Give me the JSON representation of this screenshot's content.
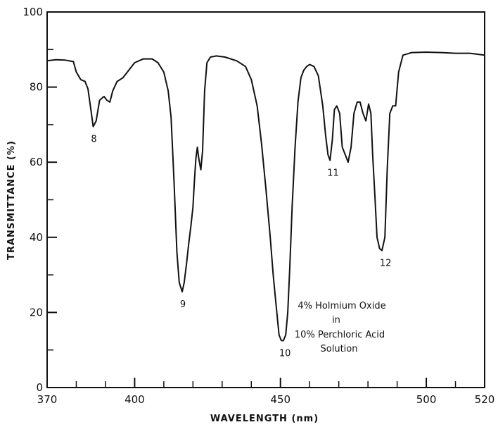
{
  "chart_data": {
    "type": "line",
    "xlabel": "WAVELENGTH (nm)",
    "ylabel": "TRANSMITTANCE (%)",
    "xlim": [
      370,
      520
    ],
    "ylim": [
      0,
      100
    ],
    "x_ticks": [
      370,
      400,
      450,
      500,
      520
    ],
    "y_ticks": [
      0,
      20,
      40,
      60,
      80,
      100
    ],
    "x_minor_ticks": [
      380,
      390,
      410,
      420,
      430,
      440,
      460,
      470,
      480,
      490,
      510
    ],
    "grid": false,
    "annotation_lines": [
      "4% Holmium Oxide",
      "in",
      "10% Perchloric Acid",
      "Solution"
    ],
    "peak_labels": [
      {
        "label": "8",
        "x": 385.8,
        "y": 69.5
      },
      {
        "label": "9",
        "x": 416.3,
        "y": 25.5
      },
      {
        "label": "10",
        "x": 451.3,
        "y": 12.5
      },
      {
        "label": "11",
        "x": 467.8,
        "y": 60.5
      },
      {
        "label": "12",
        "x": 485.8,
        "y": 36.5
      }
    ],
    "series": [
      {
        "x": [
          370,
          373,
          376,
          379,
          380,
          381.5,
          383,
          384,
          385,
          385.8,
          386.8,
          388,
          389.5,
          390.5,
          391.5,
          392.5,
          394,
          396,
          398,
          400,
          403,
          406,
          408,
          410,
          411.5,
          412.5,
          413.5,
          414.5,
          415.3,
          416.3,
          417,
          417.8,
          418.5,
          419.3,
          420,
          420.5,
          421,
          421.5,
          422,
          422.7,
          423.3,
          424,
          424.8,
          426,
          428,
          431,
          435,
          438,
          440,
          442,
          443.5,
          445,
          446.5,
          447.5,
          448.5,
          449.5,
          450.3,
          451,
          451.8,
          452.5,
          453.2,
          454,
          455,
          456,
          457,
          458,
          459,
          460,
          461.5,
          463,
          464.5,
          465.5,
          466.3,
          467,
          467.8,
          468.5,
          469.3,
          470.3,
          471.2,
          472.2,
          473.2,
          474.2,
          475.2,
          476.3,
          477.3,
          478.3,
          479.3,
          480.2,
          481,
          481.6,
          482.3,
          483.1,
          484,
          484.8,
          485.8,
          486.6,
          487.5,
          488.5,
          489.5,
          490.5,
          492,
          495,
          500,
          505,
          510,
          515,
          520
        ],
        "y": [
          87,
          87.3,
          87.2,
          86.8,
          84,
          82,
          81.5,
          79.5,
          74,
          69.5,
          71,
          76.5,
          77.5,
          76.5,
          76,
          79,
          81.5,
          82.5,
          84.5,
          86.5,
          87.5,
          87.5,
          86.5,
          84,
          79,
          72,
          55,
          36,
          28,
          25.5,
          28,
          33,
          38,
          43,
          48,
          55,
          61,
          64,
          61,
          58,
          63,
          79,
          86.5,
          88,
          88.3,
          88,
          87,
          85.5,
          82,
          75,
          65,
          53,
          40,
          30,
          22,
          14,
          12.5,
          12.5,
          14,
          20,
          32,
          48,
          64,
          76,
          82.5,
          84.5,
          85.5,
          86,
          85.5,
          83,
          75,
          67,
          62,
          60.5,
          66,
          74,
          75,
          73,
          64,
          62,
          60,
          64,
          73,
          76,
          76,
          73,
          71,
          75.5,
          73,
          62,
          52,
          40,
          37,
          36.5,
          40,
          58,
          73,
          75,
          75,
          84,
          88.5,
          89.2,
          89.3,
          89.2,
          89,
          89,
          88.5
        ]
      }
    ]
  }
}
